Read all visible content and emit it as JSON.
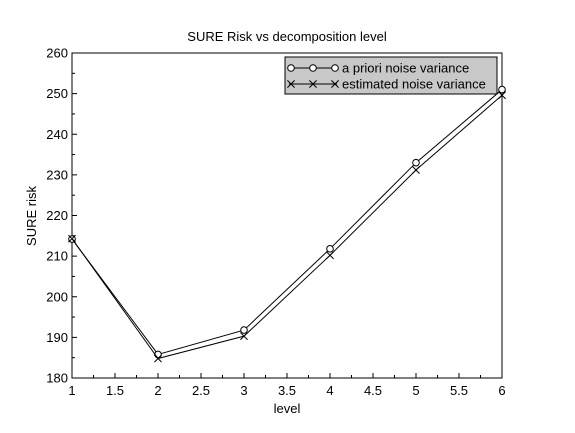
{
  "chart_data": {
    "type": "line",
    "title": "SURE Risk vs decomposition level",
    "xlabel": "level",
    "ylabel": "SURE risk",
    "xlim": [
      1,
      6
    ],
    "ylim": [
      180,
      260
    ],
    "xticks": [
      1,
      1.5,
      2,
      2.5,
      3,
      3.5,
      4,
      4.5,
      5,
      5.5,
      6
    ],
    "xtick_labels": [
      "1",
      "1.5",
      "2",
      "2.5",
      "3",
      "3.5",
      "4",
      "4.5",
      "5",
      "5.5",
      "6"
    ],
    "yticks": [
      180,
      190,
      200,
      210,
      220,
      230,
      240,
      250,
      260
    ],
    "ytick_labels": [
      "180",
      "190",
      "200",
      "210",
      "220",
      "230",
      "240",
      "250",
      "260"
    ],
    "grid": false,
    "legend_position": "top-right",
    "x": [
      1,
      2,
      3,
      4,
      5,
      6
    ],
    "series": [
      {
        "name": "a priori noise variance",
        "marker": "circle",
        "color": "#000000",
        "values": [
          214.2,
          185.8,
          191.8,
          211.8,
          233.0,
          251.0
        ]
      },
      {
        "name": "estimated noise variance",
        "marker": "x",
        "color": "#000000",
        "values": [
          214.3,
          184.8,
          190.3,
          210.2,
          231.2,
          249.6
        ]
      }
    ],
    "legend_background": "#c8c8c8"
  }
}
